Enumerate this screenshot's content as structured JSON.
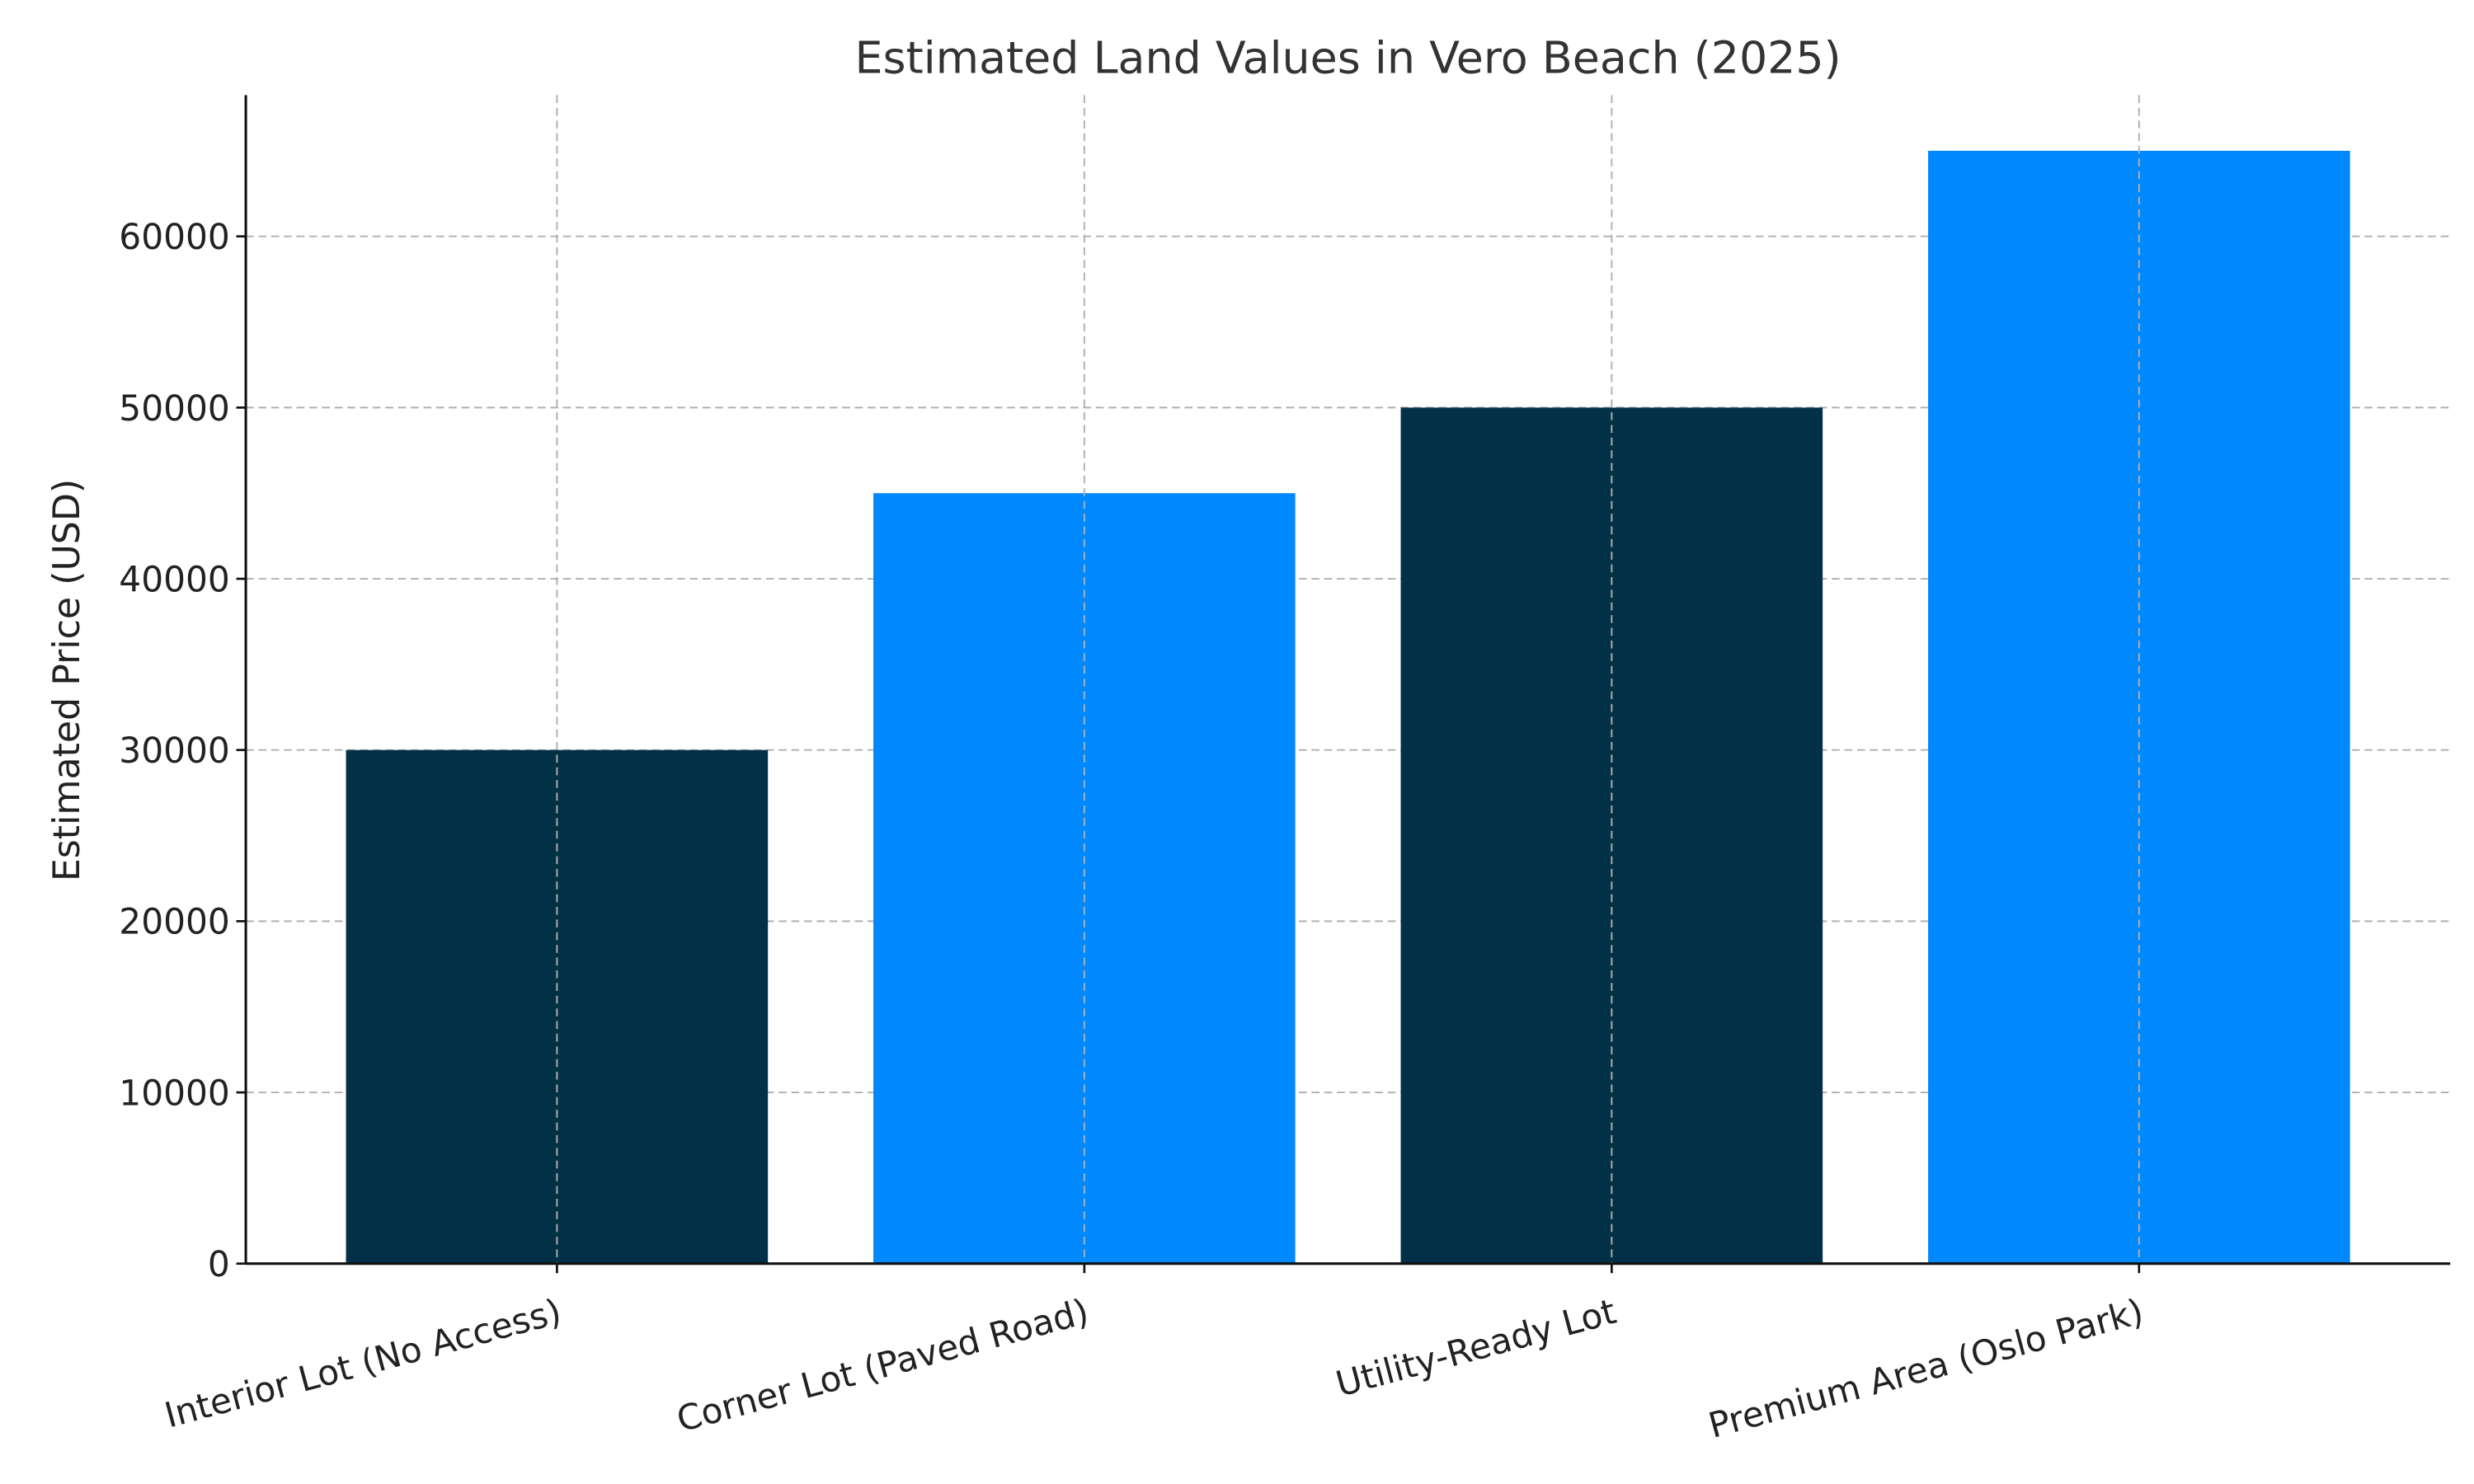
{
  "chart_data": {
    "type": "bar",
    "title": "Estimated Land Values in Vero Beach (2025)",
    "xlabel": "",
    "ylabel": "Estimated Price (USD)",
    "categories": [
      "Interior Lot (No Access)",
      "Corner Lot (Paved Road)",
      "Utility-Ready Lot",
      "Premium Area (Oslo Park)"
    ],
    "values": [
      30000,
      45000,
      50000,
      65000
    ],
    "bar_colors": [
      "#023047",
      "#0088FF",
      "#023047",
      "#0088FF"
    ],
    "ylim": [
      0,
      68250
    ],
    "yticks": [
      0,
      10000,
      20000,
      30000,
      40000,
      50000,
      60000
    ],
    "ytick_labels": [
      "0",
      "10000",
      "20000",
      "30000",
      "40000",
      "50000",
      "60000"
    ],
    "grid": true,
    "xtick_rotation": 15
  }
}
